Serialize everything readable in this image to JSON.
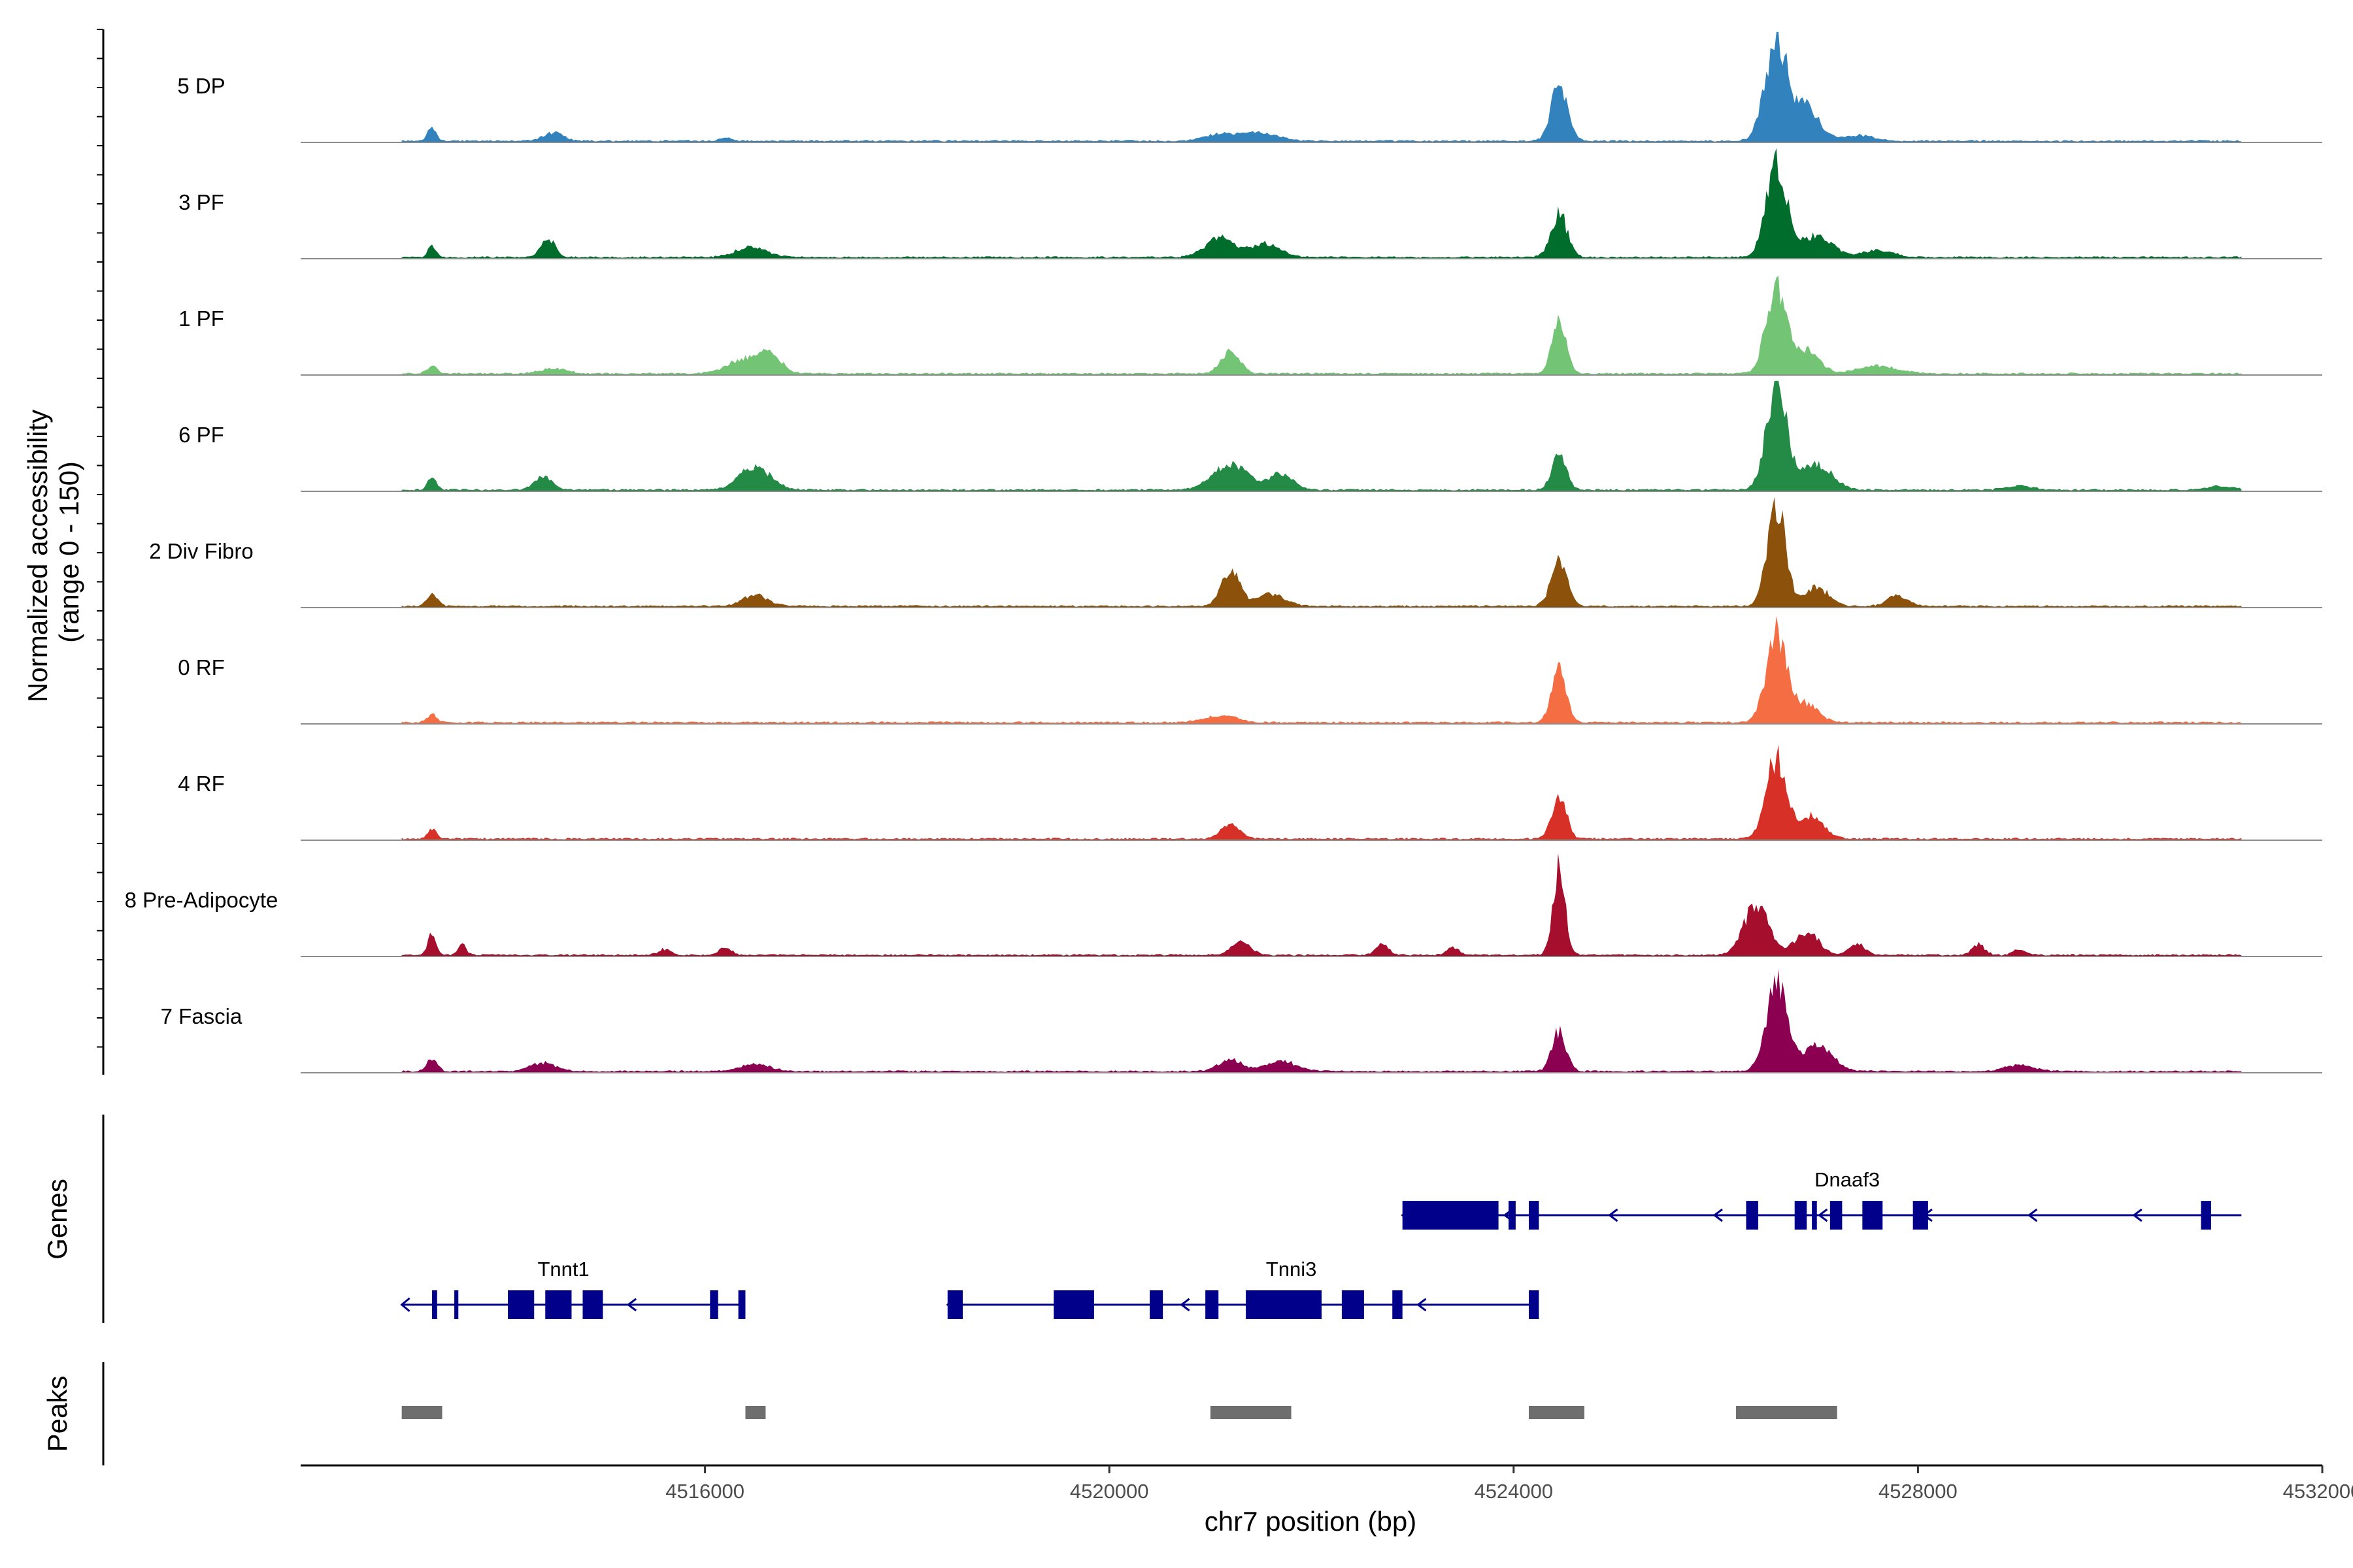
{
  "chart_data": {
    "type": "area",
    "title": "",
    "xlabel": "chr7 position (bp)",
    "ylabel": "Normalized accessibility\n(range 0 - 150)",
    "ylim": [
      0,
      150
    ],
    "xlim": [
      4512000,
      4532000
    ],
    "xticks": [
      4516000,
      4520000,
      4524000,
      4528000,
      4532000
    ],
    "xtick_labels": [
      "4516000",
      "4520000",
      "4524000",
      "4528000",
      "4532000"
    ],
    "series": [
      {
        "name": "5 DP",
        "color": "#3182bd",
        "peaks": [
          [
            4513300,
            20,
            40
          ],
          [
            4514500,
            12,
            90
          ],
          [
            4516200,
            4,
            60
          ],
          [
            4521100,
            10,
            150
          ],
          [
            4521500,
            12,
            160
          ],
          [
            4524450,
            80,
            80
          ],
          [
            4526600,
            140,
            110
          ],
          [
            4526900,
            45,
            120
          ],
          [
            4527400,
            8,
            150
          ]
        ]
      },
      {
        "name": "3 PF",
        "color": "#006d2c",
        "peaks": [
          [
            4513300,
            15,
            40
          ],
          [
            4514450,
            26,
            70
          ],
          [
            4516450,
            14,
            150
          ],
          [
            4521100,
            25,
            150
          ],
          [
            4521550,
            18,
            140
          ],
          [
            4524450,
            60,
            80
          ],
          [
            4526600,
            130,
            100
          ],
          [
            4527000,
            30,
            150
          ],
          [
            4527600,
            10,
            150
          ]
        ]
      },
      {
        "name": "1 PF",
        "color": "#74c476",
        "peaks": [
          [
            4513300,
            10,
            50
          ],
          [
            4514500,
            8,
            120
          ],
          [
            4516400,
            20,
            170
          ],
          [
            4516650,
            22,
            110
          ],
          [
            4521200,
            30,
            90
          ],
          [
            4524450,
            70,
            70
          ],
          [
            4526600,
            120,
            100
          ],
          [
            4526900,
            30,
            120
          ],
          [
            4527600,
            10,
            200
          ]
        ]
      },
      {
        "name": "6 PF",
        "color": "#238b45",
        "peaks": [
          [
            4513300,
            20,
            40
          ],
          [
            4514400,
            18,
            90
          ],
          [
            4516500,
            32,
            150
          ],
          [
            4521200,
            35,
            170
          ],
          [
            4521700,
            22,
            120
          ],
          [
            4524450,
            50,
            70
          ],
          [
            4526600,
            140,
            100
          ],
          [
            4527000,
            35,
            150
          ],
          [
            4529000,
            6,
            120
          ],
          [
            4531000,
            5,
            120
          ]
        ]
      },
      {
        "name": "2 Div Fibro",
        "color": "#8c510a",
        "peaks": [
          [
            4513300,
            20,
            50
          ],
          [
            4516500,
            16,
            120
          ],
          [
            4521200,
            50,
            90
          ],
          [
            4521600,
            16,
            140
          ],
          [
            4524450,
            60,
            80
          ],
          [
            4526600,
            140,
            90
          ],
          [
            4527000,
            25,
            120
          ],
          [
            4527800,
            14,
            100
          ]
        ]
      },
      {
        "name": "0 RF",
        "color": "#f46d43",
        "peaks": [
          [
            4513300,
            10,
            50
          ],
          [
            4521100,
            10,
            150
          ],
          [
            4524450,
            80,
            70
          ],
          [
            4526600,
            120,
            100
          ],
          [
            4526900,
            25,
            120
          ]
        ]
      },
      {
        "name": "4 RF",
        "color": "#d73027",
        "peaks": [
          [
            4513300,
            14,
            40
          ],
          [
            4521200,
            20,
            90
          ],
          [
            4524450,
            60,
            70
          ],
          [
            4526600,
            110,
            100
          ],
          [
            4526950,
            30,
            120
          ]
        ]
      },
      {
        "name": "8 Pre-Adipocyte",
        "color": "#a50f2d",
        "peaks": [
          [
            4513300,
            30,
            40
          ],
          [
            4513600,
            15,
            40
          ],
          [
            4515600,
            8,
            60
          ],
          [
            4516200,
            10,
            60
          ],
          [
            4521300,
            20,
            90
          ],
          [
            4522700,
            15,
            60
          ],
          [
            4523400,
            10,
            60
          ],
          [
            4524450,
            120,
            60
          ],
          [
            4526400,
            70,
            120
          ],
          [
            4526900,
            30,
            120
          ],
          [
            4527400,
            15,
            80
          ],
          [
            4528600,
            15,
            60
          ],
          [
            4529000,
            8,
            60
          ]
        ]
      },
      {
        "name": "7 Fascia",
        "color": "#8c0052",
        "peaks": [
          [
            4513300,
            18,
            50
          ],
          [
            4514400,
            12,
            120
          ],
          [
            4516500,
            10,
            150
          ],
          [
            4521200,
            15,
            120
          ],
          [
            4521700,
            14,
            150
          ],
          [
            4524450,
            55,
            70
          ],
          [
            4526600,
            120,
            100
          ],
          [
            4527000,
            35,
            150
          ],
          [
            4529000,
            8,
            150
          ]
        ]
      }
    ],
    "genes": [
      {
        "name": "Dnaaf3",
        "strand": "-",
        "start": 4522900,
        "end": 4531200,
        "row": 0,
        "exons": [
          [
            4522900,
            4523850
          ],
          [
            4523950,
            4524020
          ],
          [
            4524150,
            4524250
          ],
          [
            4526300,
            4526420
          ],
          [
            4526780,
            4526900
          ],
          [
            4526950,
            4527000
          ],
          [
            4527130,
            4527250
          ],
          [
            4527450,
            4527650
          ],
          [
            4527950,
            4528100
          ],
          [
            4530800,
            4530900
          ]
        ]
      },
      {
        "name": "Tnnt1",
        "strand": "-",
        "start": 4513000,
        "end": 4516400,
        "row": 1,
        "exons": [
          [
            4513300,
            4513350
          ],
          [
            4513520,
            4513560
          ],
          [
            4514050,
            4514310
          ],
          [
            4514420,
            4514680
          ],
          [
            4514790,
            4514990
          ],
          [
            4516050,
            4516130
          ],
          [
            4516330,
            4516400
          ]
        ]
      },
      {
        "name": "Tnni3",
        "strand": "-",
        "start": 4518400,
        "end": 4524250,
        "row": 1,
        "exons": [
          [
            4518400,
            4518550
          ],
          [
            4519450,
            4519850
          ],
          [
            4520400,
            4520530
          ],
          [
            4520950,
            4521080
          ],
          [
            4521350,
            4522100
          ],
          [
            4522300,
            4522520
          ],
          [
            4522800,
            4522900
          ],
          [
            4524150,
            4524250
          ]
        ]
      }
    ],
    "peak_regions": [
      [
        4513000,
        4513400
      ],
      [
        4516400,
        4516600
      ],
      [
        4521000,
        4521800
      ],
      [
        4524150,
        4524700
      ],
      [
        4526200,
        4527200
      ]
    ],
    "panels": [
      "Normalized accessibility\n(range 0 - 150)",
      "Genes",
      "Peaks"
    ]
  }
}
